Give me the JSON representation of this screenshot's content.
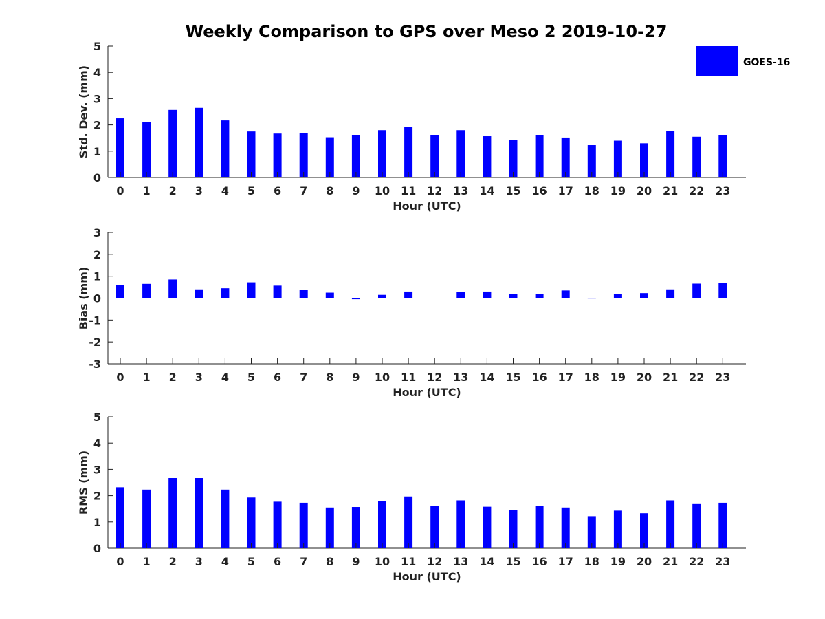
{
  "chart_data": {
    "title": "Weekly Comparison to GPS over Meso 2 2019-10-27",
    "legend": {
      "label": "GOES-16",
      "color": "#0000ff",
      "placement": "top-right"
    },
    "bar_color": "#0000ff",
    "panels": [
      {
        "type": "bar",
        "ylabel": "Std. Dev. (mm)",
        "xlabel": "Hour (UTC)",
        "ylim": [
          0,
          5
        ],
        "yticks": [
          0,
          1,
          2,
          3,
          4,
          5
        ],
        "categories": [
          "0",
          "1",
          "2",
          "3",
          "4",
          "5",
          "6",
          "7",
          "8",
          "9",
          "10",
          "11",
          "12",
          "13",
          "14",
          "15",
          "16",
          "17",
          "18",
          "19",
          "20",
          "21",
          "22",
          "23"
        ],
        "values": [
          2.25,
          2.12,
          2.57,
          2.65,
          2.17,
          1.75,
          1.67,
          1.7,
          1.53,
          1.6,
          1.8,
          1.93,
          1.62,
          1.8,
          1.57,
          1.43,
          1.6,
          1.52,
          1.23,
          1.4,
          1.3,
          1.77,
          1.55,
          1.6
        ]
      },
      {
        "type": "bar",
        "ylabel": "Bias (mm)",
        "xlabel": "Hour (UTC)",
        "ylim": [
          -3,
          3
        ],
        "yticks": [
          -3,
          -2,
          -1,
          0,
          1,
          2,
          3
        ],
        "categories": [
          "0",
          "1",
          "2",
          "3",
          "4",
          "5",
          "6",
          "7",
          "8",
          "9",
          "10",
          "11",
          "12",
          "13",
          "14",
          "15",
          "16",
          "17",
          "18",
          "19",
          "20",
          "21",
          "22",
          "23"
        ],
        "values": [
          0.6,
          0.65,
          0.85,
          0.4,
          0.45,
          0.72,
          0.57,
          0.38,
          0.25,
          -0.05,
          0.15,
          0.3,
          0.0,
          0.28,
          0.3,
          0.2,
          0.18,
          0.35,
          -0.02,
          0.18,
          0.23,
          0.4,
          0.66,
          0.7
        ]
      },
      {
        "type": "bar",
        "ylabel": "RMS (mm)",
        "xlabel": "Hour (UTC)",
        "ylim": [
          0,
          5
        ],
        "yticks": [
          0,
          1,
          2,
          3,
          4,
          5
        ],
        "categories": [
          "0",
          "1",
          "2",
          "3",
          "4",
          "5",
          "6",
          "7",
          "8",
          "9",
          "10",
          "11",
          "12",
          "13",
          "14",
          "15",
          "16",
          "17",
          "18",
          "19",
          "20",
          "21",
          "22",
          "23"
        ],
        "values": [
          2.32,
          2.23,
          2.67,
          2.67,
          2.23,
          1.93,
          1.77,
          1.73,
          1.55,
          1.57,
          1.78,
          1.97,
          1.6,
          1.82,
          1.58,
          1.45,
          1.6,
          1.55,
          1.22,
          1.43,
          1.33,
          1.82,
          1.68,
          1.73
        ]
      }
    ]
  }
}
